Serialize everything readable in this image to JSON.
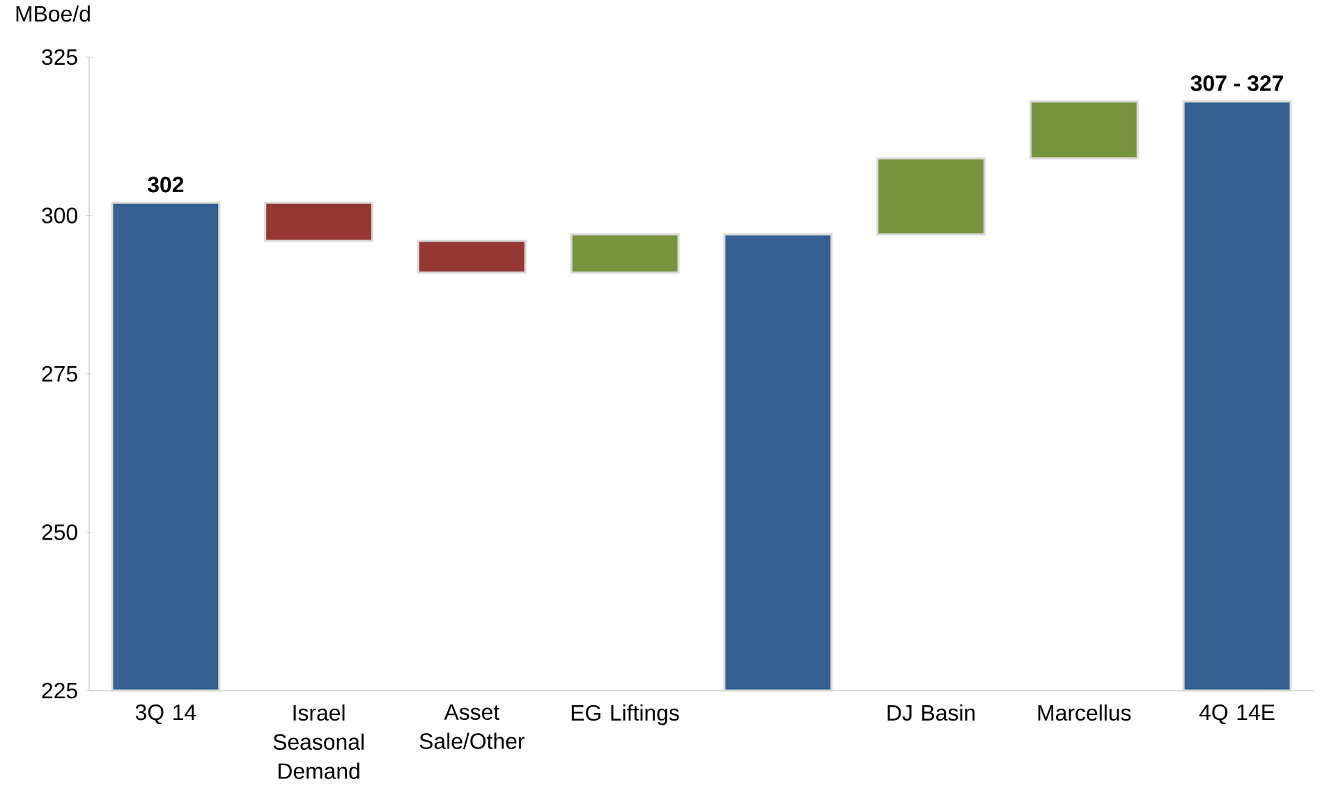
{
  "chart_data": {
    "type": "bar",
    "ylabel": "MBoe/d",
    "categories": [
      "3Q 14",
      "Israel Seasonal Demand",
      "Asset Sale/Other",
      "EG Liftings",
      null,
      "DJ Basin",
      "Marcellus",
      "4Q 14E"
    ],
    "values": [
      77,
      -6,
      -5,
      6,
      72,
      12,
      9,
      93
    ],
    "base": [
      225,
      302,
      296,
      291,
      225,
      297,
      309,
      225
    ],
    "colors": [
      "#366092",
      "#953735",
      "#953735",
      "#77933c",
      "#366092",
      "#77933c",
      "#77933c",
      "#366092"
    ],
    "value_labels": [
      "302",
      null,
      null,
      null,
      null,
      null,
      null,
      null
    ],
    "annotations": [
      {
        "text": "307 - 327",
        "x": "4Q 14E",
        "y": 318
      }
    ],
    "ylim": [
      225,
      325
    ],
    "yticks": [
      225,
      250,
      275,
      300,
      325
    ],
    "grid": false
  }
}
